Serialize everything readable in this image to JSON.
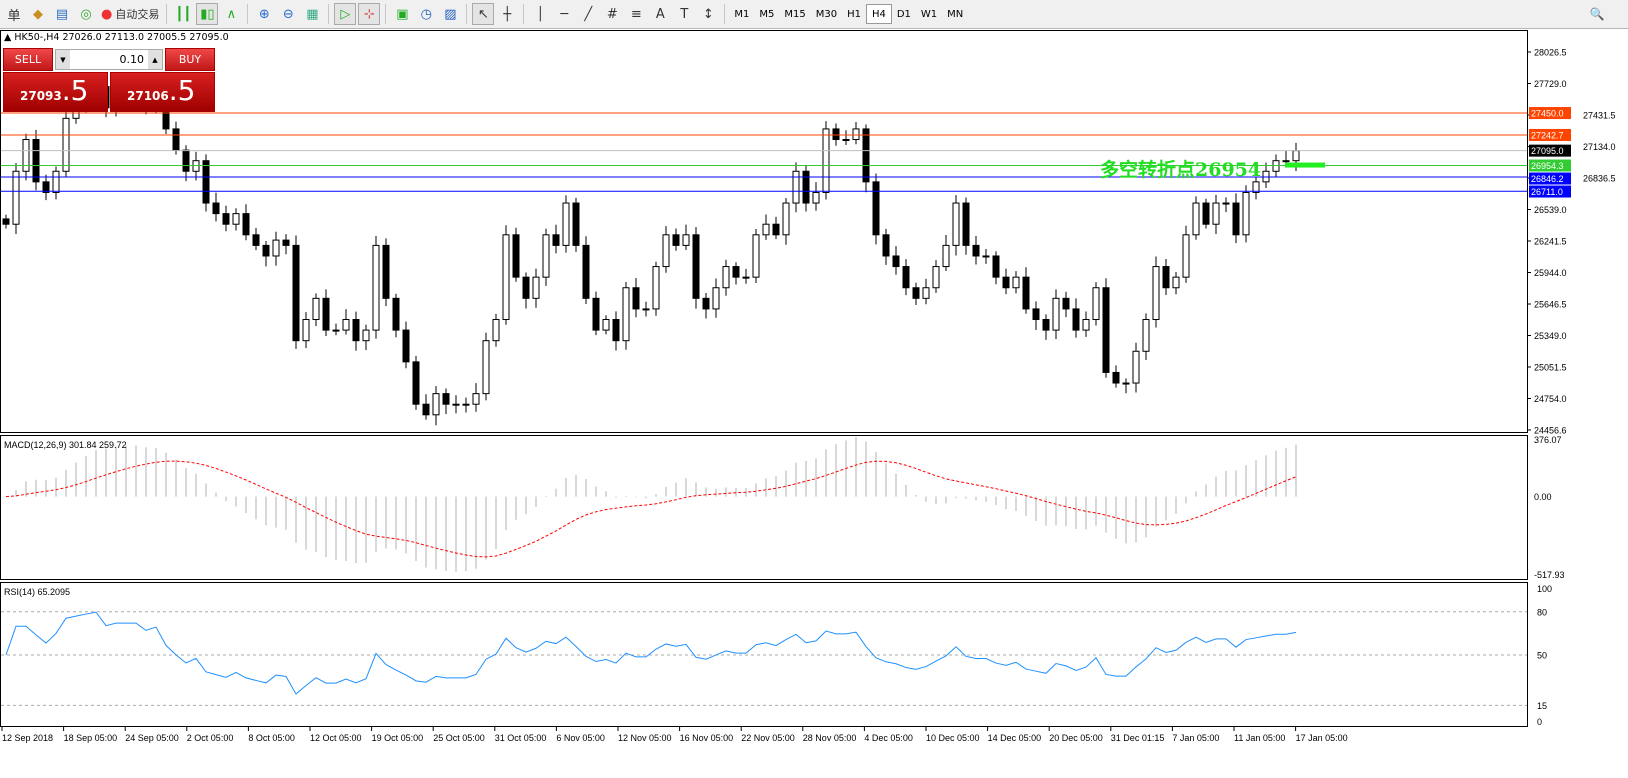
{
  "toolbar": {
    "items": [
      "单",
      "◆",
      "▤",
      "◎"
    ],
    "auto_trade": "自动交易",
    "tools": [
      "┃┃",
      "▮▯",
      "∧",
      "⊕",
      "⊖",
      "▦",
      "▷",
      "⊹",
      "▣",
      "◷",
      "▨",
      "↖",
      "┼",
      "│",
      "─",
      "╱",
      "#",
      "≡",
      "A",
      "T",
      "↕"
    ],
    "timeframes": [
      "M1",
      "M5",
      "M15",
      "M30",
      "H1",
      "H4",
      "D1",
      "W1",
      "MN"
    ],
    "active_timeframe": "H4",
    "search_icon": "🔍"
  },
  "symbol_info": "HK50-,H4  27026.0 27113.0 27005.5 27095.0",
  "trade_panel": {
    "sell_label": "SELL",
    "buy_label": "BUY",
    "lot": "0.10",
    "bid_main": "27093",
    "bid_frac": ".5",
    "ask_main": "27106",
    "ask_frac": ".5"
  },
  "annotation": "多空转折点26954",
  "colors": {
    "resistance": "#ff4400",
    "pivot": "#33cc33",
    "support": "#0000ff",
    "current": "#000000",
    "macd_signal": "#ff0000",
    "rsi": "#1e90ff"
  },
  "chart_data": [
    {
      "type": "candlestick",
      "title": "HK50-,H4",
      "ylim": [
        24456.6,
        28150
      ],
      "y_ticks": [
        "28026.5",
        "27729.0",
        "27431.5",
        "27134.0",
        "26836.5",
        "26539.0",
        "26241.5",
        "25944.0",
        "25646.5",
        "25349.0",
        "25051.5",
        "24754.0",
        "24456.6"
      ],
      "closes": [
        26400,
        26900,
        27200,
        26800,
        26700,
        26900,
        27400,
        27500,
        27600,
        27700,
        27500,
        27600,
        27600,
        27600,
        27500,
        27600,
        27300,
        27100,
        26900,
        27000,
        26600,
        26500,
        26400,
        26500,
        26300,
        26200,
        26100,
        26250,
        26200,
        25300,
        25500,
        25700,
        25400,
        25400,
        25500,
        25300,
        25400,
        26200,
        25700,
        25400,
        25100,
        24700,
        24600,
        24800,
        24700,
        24700,
        24700,
        24800,
        25300,
        25500,
        26300,
        25900,
        25700,
        25900,
        26300,
        26200,
        26600,
        26200,
        25700,
        25400,
        25500,
        25300,
        25800,
        25600,
        25600,
        26000,
        26300,
        26200,
        26300,
        25700,
        25600,
        25800,
        26000,
        25900,
        25900,
        26300,
        26400,
        26300,
        26600,
        26900,
        26600,
        26700,
        27300,
        27200,
        27200,
        27300,
        26800,
        26300,
        26100,
        26000,
        25800,
        25700,
        25800,
        26000,
        26200,
        26600,
        26200,
        26100,
        26100,
        25900,
        25800,
        25900,
        25600,
        25500,
        25400,
        25700,
        25600,
        25400,
        25500,
        25800,
        25000,
        24900,
        24900,
        25200,
        25500,
        26000,
        25800,
        25900,
        26300,
        26600,
        26400,
        26600,
        26600,
        26300,
        26700,
        26800,
        26900,
        27000,
        27000,
        27095
      ],
      "hlines": [
        {
          "label": "27450.0",
          "value": 27450.0,
          "kind": "resistance"
        },
        {
          "label": "27242.7",
          "value": 27242.7,
          "kind": "resistance"
        },
        {
          "label": "27095.0",
          "value": 27095.0,
          "kind": "current"
        },
        {
          "label": "26954.3",
          "value": 26954.3,
          "kind": "pivot"
        },
        {
          "label": "26846.2",
          "value": 26846.2,
          "kind": "support"
        },
        {
          "label": "26711.0",
          "value": 26711.0,
          "kind": "support"
        }
      ],
      "x_ticks": [
        "12 Sep 2018",
        "18 Sep 05:00",
        "24 Sep 05:00",
        "2 Oct 05:00",
        "8 Oct 05:00",
        "12 Oct 05:00",
        "19 Oct 05:00",
        "25 Oct 05:00",
        "31 Oct 05:00",
        "6 Nov 05:00",
        "12 Nov 05:00",
        "16 Nov 05:00",
        "22 Nov 05:00",
        "28 Nov 05:00",
        "4 Dec 05:00",
        "10 Dec 05:00",
        "14 Dec 05:00",
        "20 Dec 05:00",
        "31 Dec 01:15",
        "7 Jan 05:00",
        "11 Jan 05:00",
        "17 Jan 05:00"
      ]
    },
    {
      "type": "bar+line",
      "title": "MACD(12,26,9) 301.84 259.72",
      "ylim": [
        -517.93,
        376.07
      ],
      "y_ticks": [
        "376.07",
        "0.00",
        "-517.93"
      ]
    },
    {
      "type": "line",
      "title": "RSI(14) 65.2095",
      "ylim": [
        0,
        100
      ],
      "y_ticks": [
        "100",
        "80",
        "50",
        "15",
        "0"
      ],
      "levels": [
        80,
        50,
        15
      ]
    }
  ]
}
